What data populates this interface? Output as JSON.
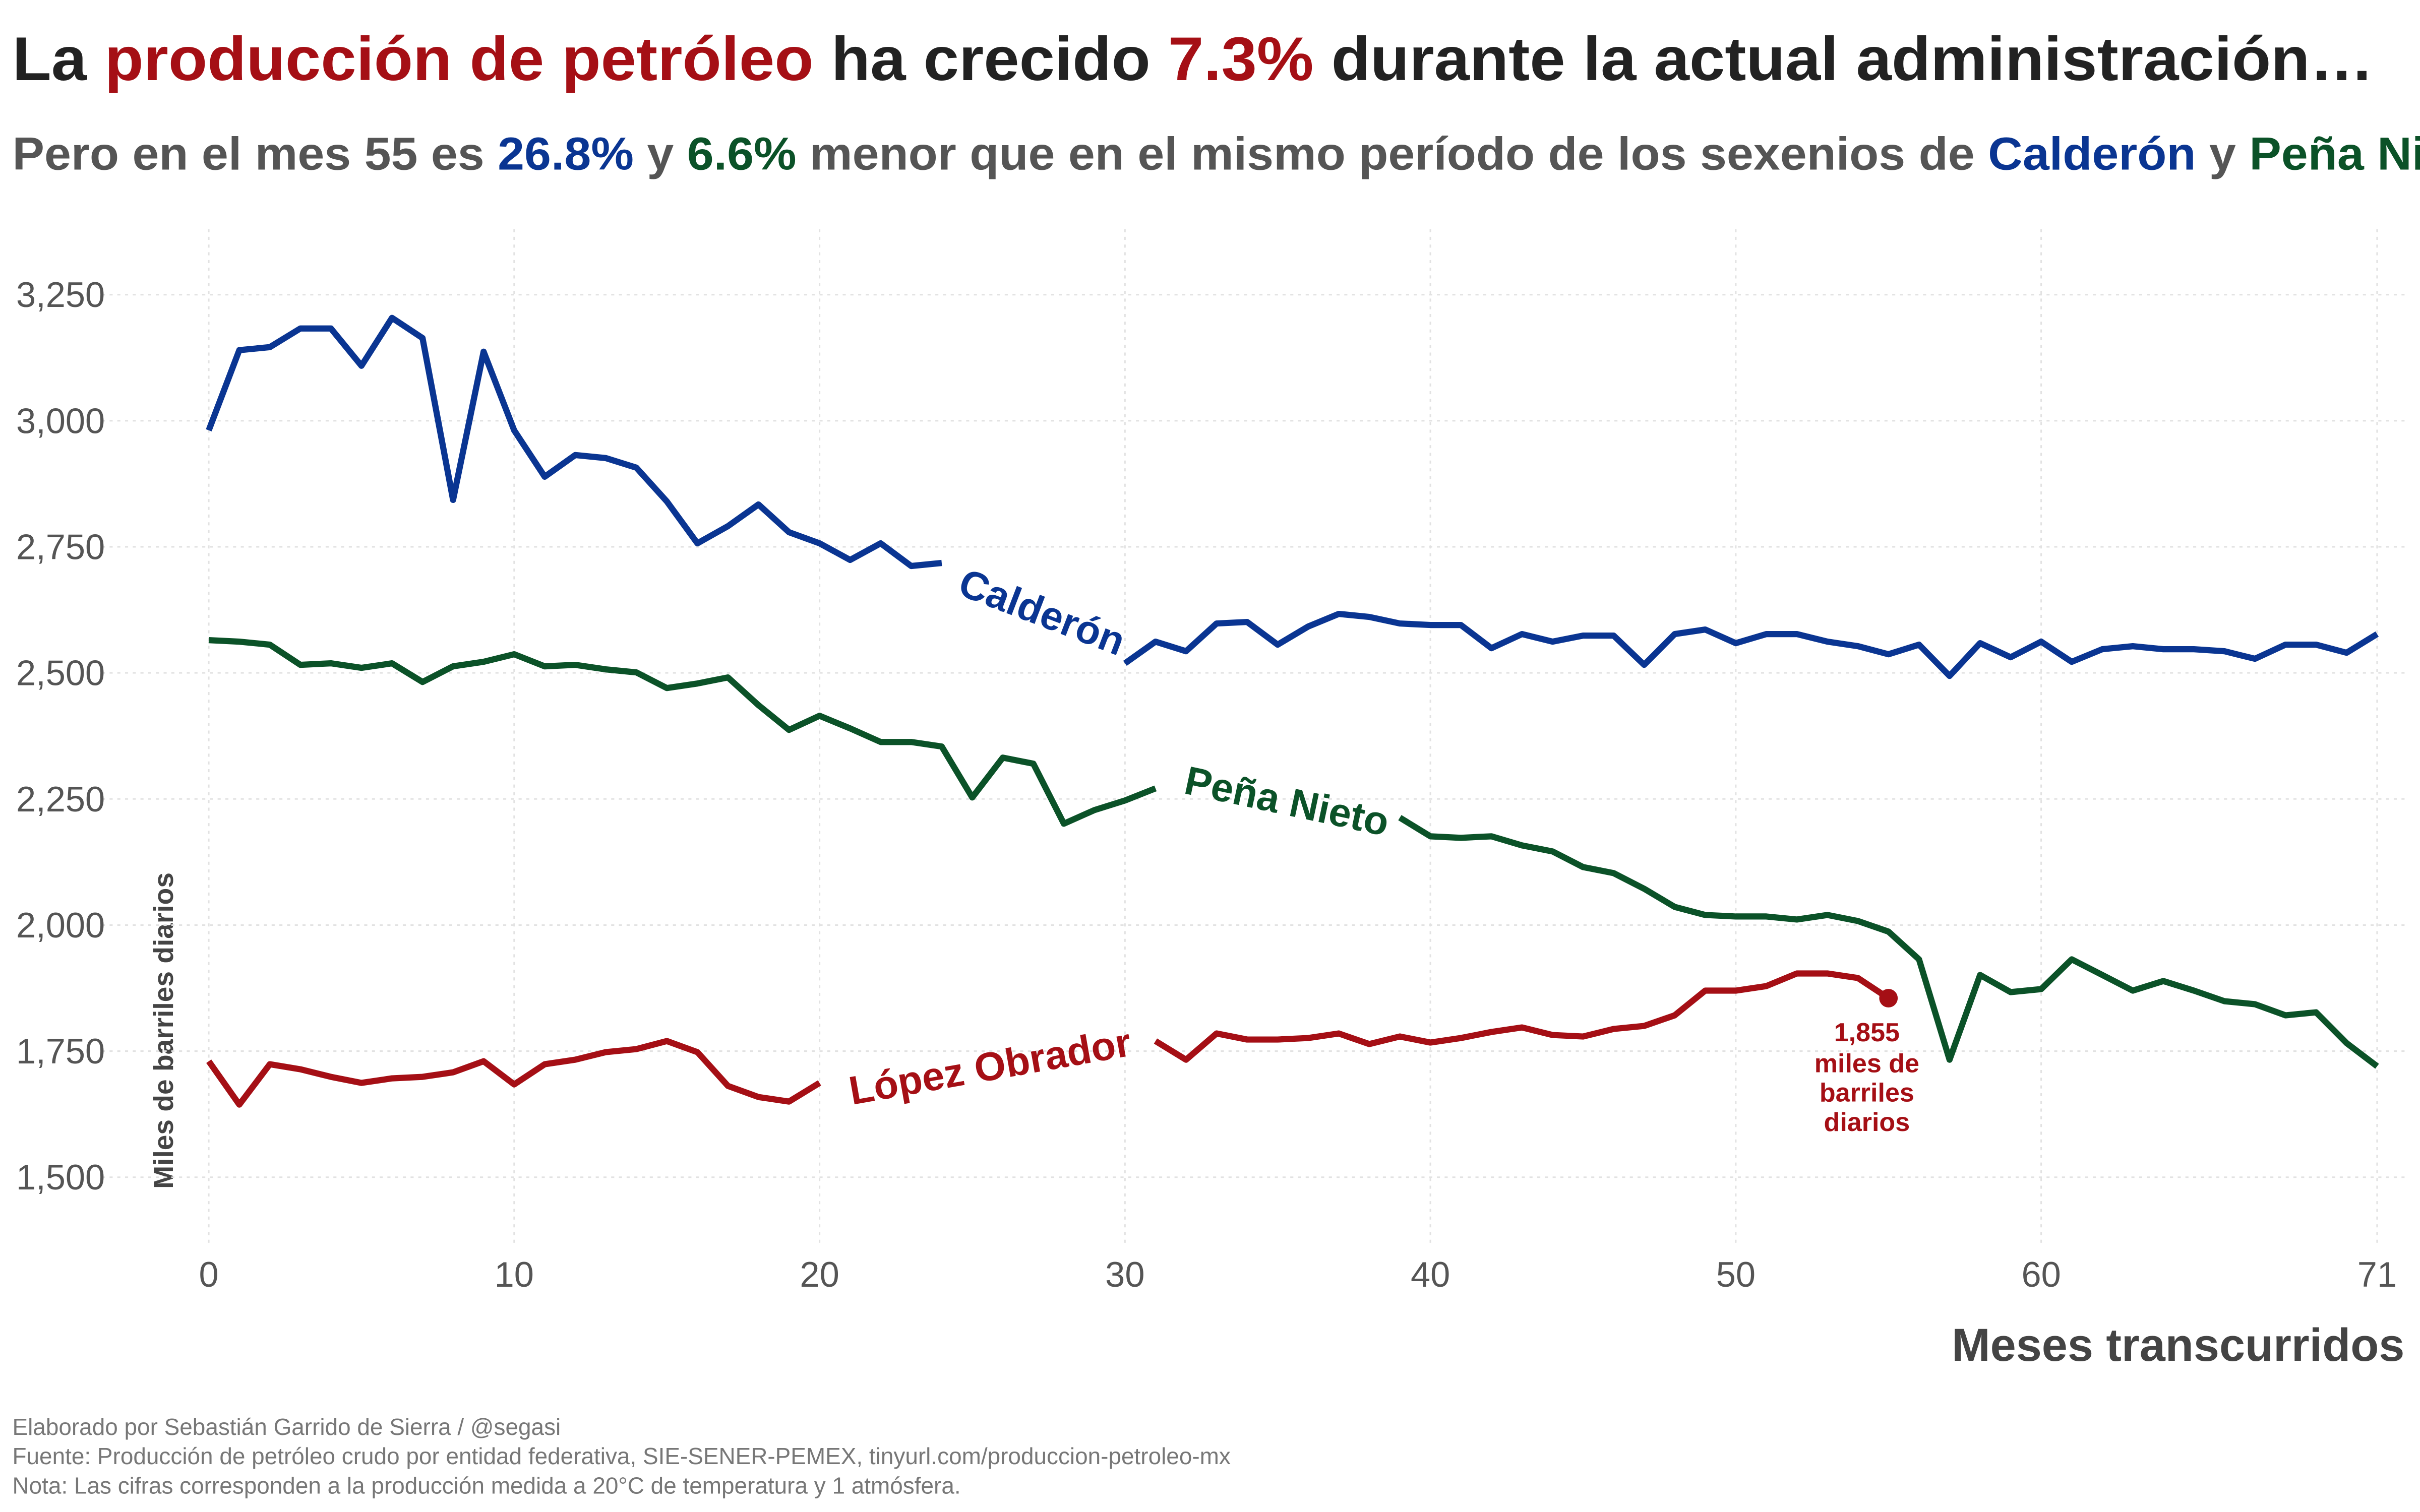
{
  "chart_data": {
    "type": "line",
    "title": [
      "La ",
      "producción de petróleo",
      " ha crecido ",
      "7.3%",
      " durante la actual administración…"
    ],
    "subtitle": [
      "Pero en el mes 55 es ",
      "26.8%",
      " y ",
      "6.6%",
      " menor que en el mismo período de los sexenios de ",
      "Calderón",
      " y ",
      "Peña Nieto"
    ],
    "x_label": "Meses transcurridos",
    "y_label": "Miles de barriles diarios",
    "footer": [
      "Elaborado por Sebastián Garrido de Sierra / @segasi",
      "Fuente: Producción de petróleo crudo por entidad federativa, SIE-SENER-PEMEX, tinyurl.com/produccion-petroleo-mx",
      "Nota: Las cifras corresponden a la producción medida a 20°C de temperatura y 1 atmósfera."
    ],
    "x": [
      0,
      1,
      2,
      3,
      4,
      5,
      6,
      7,
      8,
      9,
      10,
      11,
      12,
      13,
      14,
      15,
      16,
      17,
      18,
      19,
      20,
      21,
      22,
      23,
      24,
      25,
      26,
      27,
      28,
      29,
      30,
      31,
      32,
      33,
      34,
      35,
      36,
      37,
      38,
      39,
      40,
      41,
      42,
      43,
      44,
      45,
      46,
      47,
      48,
      49,
      50,
      51,
      52,
      53,
      54,
      55,
      56,
      57,
      58,
      59,
      60,
      61,
      62,
      63,
      64,
      65,
      66,
      67,
      68,
      69,
      70,
      71
    ],
    "xlim": [
      -3.5,
      72
    ],
    "xticks": [
      0,
      10,
      20,
      30,
      40,
      50,
      60,
      71
    ],
    "ylim": [
      1370,
      3380
    ],
    "yticks": [
      {
        "value": 1500,
        "label": "1,500"
      },
      {
        "value": 1750,
        "label": "1,750"
      },
      {
        "value": 2000,
        "label": "2,000"
      },
      {
        "value": 2250,
        "label": "2,250"
      },
      {
        "value": 2500,
        "label": "2,500"
      },
      {
        "value": 2750,
        "label": "2,750"
      },
      {
        "value": 3000,
        "label": "3,000"
      },
      {
        "value": 3250,
        "label": "3,250"
      }
    ],
    "grid": true,
    "series": [
      {
        "name": "Calderón",
        "color": "#0a3592",
        "values": [
          2981,
          3140,
          3146,
          3183,
          3183,
          3109,
          3204,
          3164,
          2843,
          3137,
          2981,
          2889,
          2932,
          2926,
          2907,
          2840,
          2757,
          2791,
          2834,
          2779,
          2757,
          2724,
          2757,
          2712,
          2718,
          null,
          null,
          null,
          null,
          null,
          2519,
          2562,
          2543,
          2598,
          2601,
          2556,
          2592,
          2617,
          2611,
          2598,
          2595,
          2595,
          2549,
          2577,
          2562,
          2574,
          2574,
          2516,
          2577,
          2586,
          2559,
          2577,
          2577,
          2562,
          2553,
          2537,
          2556,
          2494,
          2559,
          2531,
          2562,
          2522,
          2547,
          2553,
          2547,
          2547,
          2543,
          2528,
          2556,
          2556,
          2540,
          2577
        ]
      },
      {
        "name": "Peña Nieto",
        "color": "#0b5228",
        "values": [
          2565,
          2562,
          2556,
          2516,
          2519,
          2510,
          2519,
          2482,
          2513,
          2522,
          2537,
          2513,
          2516,
          2507,
          2501,
          2470,
          2479,
          2491,
          2436,
          2387,
          2415,
          2390,
          2363,
          2363,
          2354,
          2253,
          2332,
          2320,
          2201,
          2228,
          2247,
          2271,
          null,
          null,
          null,
          null,
          null,
          null,
          null,
          2213,
          2176,
          2173,
          2176,
          2158,
          2146,
          2115,
          2103,
          2072,
          2036,
          2020,
          2017,
          2017,
          2011,
          2020,
          2008,
          1987,
          1932,
          1733,
          1901,
          1867,
          1873,
          1932,
          1901,
          1870,
          1889,
          1870,
          1849,
          1843,
          1821,
          1827,
          1766,
          1720
        ]
      },
      {
        "name": "López Obrador",
        "color": "#a50f15",
        "values": [
          1730,
          1644,
          1724,
          1714,
          1699,
          1687,
          1696,
          1699,
          1708,
          1730,
          1684,
          1724,
          1733,
          1748,
          1754,
          1770,
          1748,
          1681,
          1659,
          1650,
          1687,
          null,
          null,
          null,
          null,
          null,
          null,
          null,
          null,
          null,
          null,
          1770,
          1733,
          1785,
          1773,
          1773,
          1776,
          1785,
          1764,
          1779,
          1767,
          1776,
          1788,
          1797,
          1782,
          1779,
          1794,
          1800,
          1821,
          1870,
          1870,
          1879,
          1904,
          1904,
          1895,
          1855,
          null,
          null,
          null,
          null,
          null,
          null,
          null,
          null,
          null,
          null,
          null,
          null,
          null,
          null,
          null,
          null
        ],
        "end_label": "1,855",
        "end_note": [
          "miles de",
          "barriles",
          "diarios"
        ]
      }
    ]
  }
}
